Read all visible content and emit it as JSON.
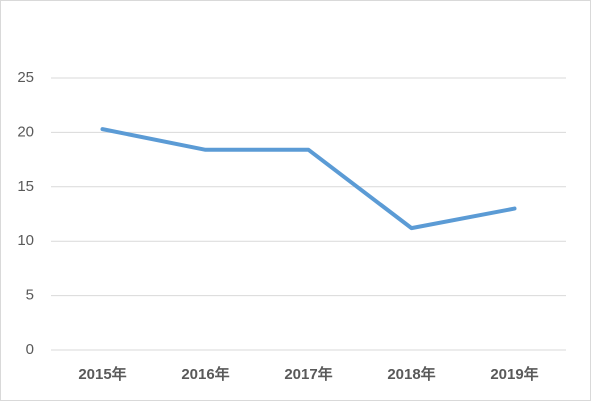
{
  "chart_data": {
    "type": "line",
    "categories": [
      "2015年",
      "2016年",
      "2017年",
      "2018年",
      "2019年"
    ],
    "values": [
      20.3,
      18.4,
      18.4,
      11.2,
      13.0
    ],
    "color": "#5b9bd5",
    "ylim": [
      0,
      25
    ],
    "yticks": [
      0,
      5,
      10,
      15,
      20,
      25
    ],
    "grid": true
  }
}
